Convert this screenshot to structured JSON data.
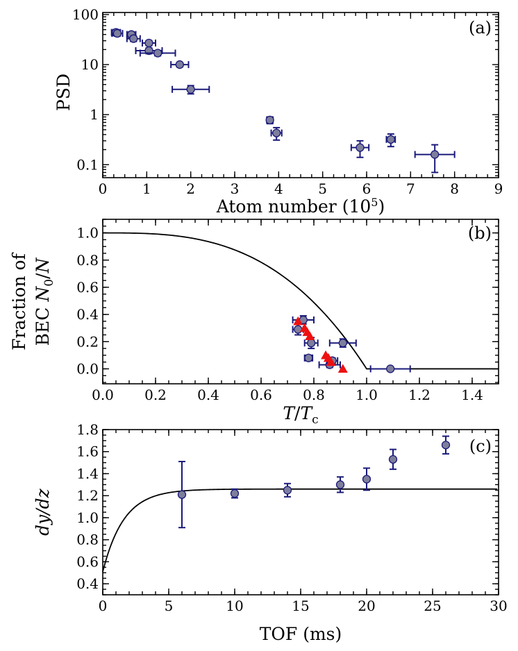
{
  "chart_data": [
    {
      "type": "scatter",
      "panel": "a",
      "label": "(a)",
      "xlabel": "Atom number",
      "xlabel_exp": "(10",
      "xlabel_sup": "5",
      "xlabel_close": ")",
      "ylabel": "PSD",
      "xlim": [
        0,
        9
      ],
      "ylim": [
        0.055,
        110
      ],
      "yscale": "log",
      "xticks": [
        "0",
        "1",
        "2",
        "3",
        "4",
        "5",
        "6",
        "7",
        "8",
        "9"
      ],
      "yticks": [
        {
          "v": 100,
          "t": "100"
        },
        {
          "v": 10,
          "t": "10"
        },
        {
          "v": 1,
          "t": "1"
        },
        {
          "v": 0.1,
          "t": "0.1"
        }
      ],
      "points": [
        {
          "x": 0.3,
          "y": 44,
          "xerr": 0.1,
          "yerr": 6
        },
        {
          "x": 0.33,
          "y": 42,
          "xerr": 0.12,
          "yerr": 5
        },
        {
          "x": 0.65,
          "y": 40,
          "xerr": 0.1,
          "yerr": 5
        },
        {
          "x": 0.7,
          "y": 33,
          "xerr": 0.15,
          "yerr": 4
        },
        {
          "x": 1.05,
          "y": 27,
          "xerr": 0.15,
          "yerr": 3
        },
        {
          "x": 1.05,
          "y": 19,
          "xerr": 0.3,
          "yerr": 2.5
        },
        {
          "x": 1.25,
          "y": 17,
          "xerr": 0.4,
          "yerr": 2
        },
        {
          "x": 1.75,
          "y": 10,
          "xerr": 0.2,
          "yerr": 1
        },
        {
          "x": 2.0,
          "y": 3.2,
          "xerr": 0.42,
          "yerr": 0.6
        },
        {
          "x": 3.8,
          "y": 0.78,
          "xerr": 0.07,
          "yerr": 0.12
        },
        {
          "x": 3.95,
          "y": 0.43,
          "xerr": 0.12,
          "yerr": 0.12
        },
        {
          "x": 5.85,
          "y": 0.22,
          "xerr": 0.2,
          "yerr": 0.08
        },
        {
          "x": 6.55,
          "y": 0.32,
          "xerr": 0.1,
          "yerr": 0.09
        },
        {
          "x": 7.55,
          "y": 0.16,
          "xerr": 0.45,
          "yerr": 0.09
        }
      ]
    },
    {
      "type": "scatter",
      "panel": "b",
      "label": "(b)",
      "xlabel_T": "T",
      "xlabel_slash": "/",
      "xlabel_Tc": "T",
      "xlabel_sub": "c",
      "ylabel_line1": "Fraction of",
      "ylabel_line2": "BEC",
      "ylabel_N0": "N",
      "ylabel_sub0": "0",
      "ylabel_slash": "/",
      "ylabel_N": "N",
      "xlim": [
        0,
        1.5
      ],
      "ylim": [
        -0.11,
        1.1
      ],
      "xticks": [
        "0.0",
        "0.2",
        "0.4",
        "0.6",
        "0.8",
        "1.0",
        "1.2",
        "1.4"
      ],
      "yticks": [
        "0.0",
        "0.2",
        "0.4",
        "0.6",
        "0.8",
        "1.0"
      ],
      "curve": "1 - (T/Tc)^3",
      "points": [
        {
          "x": 0.74,
          "y": 0.29,
          "xerr": 0.02,
          "yerr": 0.04
        },
        {
          "x": 0.76,
          "y": 0.36,
          "xerr": 0.04,
          "yerr": 0.03
        },
        {
          "x": 0.78,
          "y": 0.08,
          "xerr": 0.015,
          "yerr": 0.02
        },
        {
          "x": 0.79,
          "y": 0.19,
          "xerr": 0.025,
          "yerr": 0.04
        },
        {
          "x": 0.86,
          "y": 0.03,
          "xerr": 0.04,
          "yerr": 0.02
        },
        {
          "x": 0.87,
          "y": 0.06,
          "xerr": 0.02,
          "yerr": 0.02
        },
        {
          "x": 0.91,
          "y": 0.19,
          "xerr": 0.05,
          "yerr": 0.03
        },
        {
          "x": 1.09,
          "y": 0.0,
          "xerr": 0.075,
          "yerr": 0.0
        }
      ],
      "triangles": [
        {
          "x": 0.74,
          "y": 0.35
        },
        {
          "x": 0.765,
          "y": 0.3
        },
        {
          "x": 0.775,
          "y": 0.27
        },
        {
          "x": 0.785,
          "y": 0.24
        },
        {
          "x": 0.845,
          "y": 0.1
        },
        {
          "x": 0.855,
          "y": 0.08
        },
        {
          "x": 0.865,
          "y": 0.05
        },
        {
          "x": 0.91,
          "y": 0.0
        }
      ]
    },
    {
      "type": "scatter",
      "panel": "c",
      "label": "(c)",
      "xlabel": "TOF (ms)",
      "ylabel": "dy/dz",
      "xlim": [
        0,
        30
      ],
      "ylim": [
        0.3,
        1.8
      ],
      "xticks": [
        "0",
        "5",
        "10",
        "15",
        "20",
        "25",
        "30"
      ],
      "yticks": [
        "0.4",
        "0.6",
        "0.8",
        "1.0",
        "1.2",
        "1.4",
        "1.6",
        "1.8"
      ],
      "curve": "1.26 - 0.75*exp(-t/1.6)",
      "points": [
        {
          "x": 6,
          "y": 1.21,
          "yerr": 0.3
        },
        {
          "x": 10,
          "y": 1.22,
          "yerr": 0.04
        },
        {
          "x": 14,
          "y": 1.25,
          "yerr": 0.06
        },
        {
          "x": 18,
          "y": 1.3,
          "yerr": 0.07
        },
        {
          "x": 20,
          "y": 1.35,
          "yerr": 0.1
        },
        {
          "x": 22,
          "y": 1.53,
          "yerr": 0.09
        },
        {
          "x": 26,
          "y": 1.66,
          "yerr": 0.08
        }
      ]
    }
  ]
}
